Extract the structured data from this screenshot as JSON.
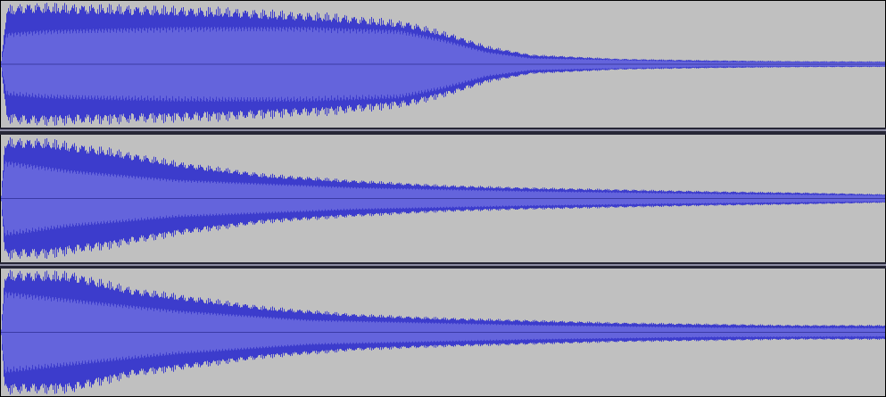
{
  "colors": {
    "background": "#c0c0c0",
    "border": "#000000",
    "separator": "#262636",
    "separator_highlight": "#8c8ca2",
    "waveform_peak": "#3c3ccc",
    "waveform_rms": "#6464dc",
    "center_line": "#202080"
  },
  "tracks": [
    {
      "id": "track-1",
      "envelope": [
        [
          0,
          0.06
        ],
        [
          0.006,
          0.95
        ],
        [
          0.03,
          1.0
        ],
        [
          0.12,
          0.97
        ],
        [
          0.25,
          0.92
        ],
        [
          0.38,
          0.82
        ],
        [
          0.46,
          0.7
        ],
        [
          0.51,
          0.5
        ],
        [
          0.55,
          0.3
        ],
        [
          0.6,
          0.16
        ],
        [
          0.7,
          0.09
        ],
        [
          0.8,
          0.065
        ],
        [
          0.9,
          0.05
        ],
        [
          1.0,
          0.045
        ]
      ],
      "rms": [
        [
          0,
          0.04
        ],
        [
          0.006,
          0.5
        ],
        [
          0.05,
          0.55
        ],
        [
          0.2,
          0.6
        ],
        [
          0.35,
          0.6
        ],
        [
          0.45,
          0.55
        ],
        [
          0.5,
          0.4
        ],
        [
          0.55,
          0.2
        ],
        [
          0.6,
          0.1
        ],
        [
          0.8,
          0.04
        ],
        [
          1.0,
          0.03
        ]
      ]
    },
    {
      "id": "track-2",
      "envelope": [
        [
          0,
          0.05
        ],
        [
          0.004,
          0.98
        ],
        [
          0.05,
          0.97
        ],
        [
          0.12,
          0.82
        ],
        [
          0.2,
          0.6
        ],
        [
          0.3,
          0.4
        ],
        [
          0.4,
          0.3
        ],
        [
          0.5,
          0.22
        ],
        [
          0.6,
          0.18
        ],
        [
          0.7,
          0.15
        ],
        [
          0.8,
          0.12
        ],
        [
          0.9,
          0.1
        ],
        [
          1.0,
          0.07
        ]
      ],
      "rms": [
        [
          0,
          0.04
        ],
        [
          0.004,
          0.6
        ],
        [
          0.08,
          0.45
        ],
        [
          0.2,
          0.3
        ],
        [
          0.4,
          0.18
        ],
        [
          0.6,
          0.12
        ],
        [
          0.8,
          0.08
        ],
        [
          1.0,
          0.05
        ]
      ]
    },
    {
      "id": "track-3",
      "envelope": [
        [
          0,
          0.05
        ],
        [
          0.004,
          1.0
        ],
        [
          0.08,
          0.98
        ],
        [
          0.15,
          0.72
        ],
        [
          0.22,
          0.58
        ],
        [
          0.3,
          0.42
        ],
        [
          0.4,
          0.3
        ],
        [
          0.5,
          0.24
        ],
        [
          0.6,
          0.2
        ],
        [
          0.7,
          0.16
        ],
        [
          0.8,
          0.14
        ],
        [
          0.9,
          0.12
        ],
        [
          1.0,
          0.12
        ]
      ],
      "rms": [
        [
          0,
          0.04
        ],
        [
          0.004,
          0.65
        ],
        [
          0.1,
          0.5
        ],
        [
          0.2,
          0.35
        ],
        [
          0.35,
          0.2
        ],
        [
          0.6,
          0.12
        ],
        [
          0.8,
          0.08
        ],
        [
          1.0,
          0.07
        ]
      ]
    }
  ]
}
